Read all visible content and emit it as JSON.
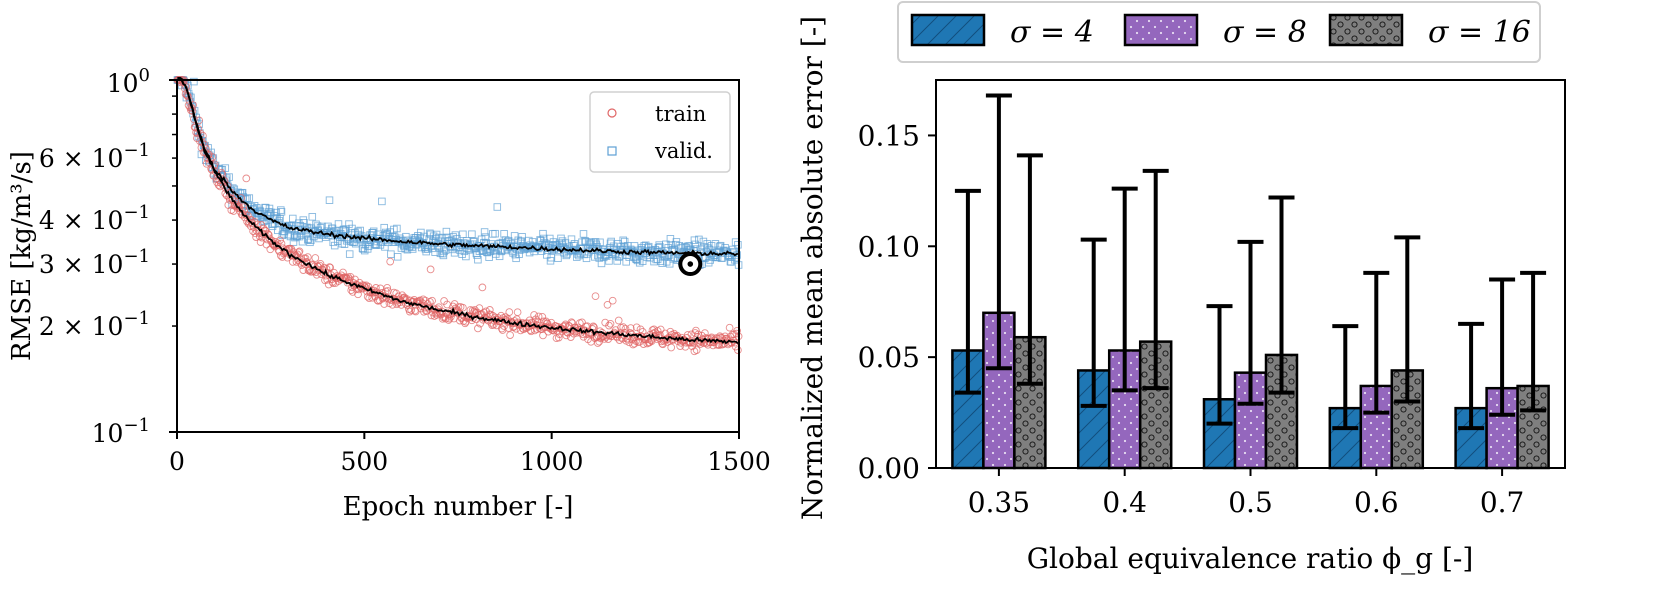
{
  "chart_data": [
    {
      "type": "scatter",
      "xlabel": "Epoch number [-]",
      "ylabel": "RMSE [kg/m³/s]",
      "xlim": [
        0,
        1500
      ],
      "ylim": [
        0.1,
        1.0
      ],
      "yscale": "log",
      "grid": false,
      "legend_position": "top-right",
      "x_ticks": [
        0,
        500,
        1000,
        1500
      ],
      "x_tick_labels": [
        "0",
        "500",
        "1000",
        "1500"
      ],
      "y_ticks": [
        0.1,
        0.2,
        0.3,
        0.4,
        0.6,
        1.0
      ],
      "y_tick_labels": [
        {
          "base": "2 × 10",
          "exp": "−1"
        },
        {
          "base": "3 × 10",
          "exp": "−1"
        },
        {
          "base": "4 × 10",
          "exp": "−1"
        },
        {
          "base": "6 × 10",
          "exp": "−1"
        }
      ],
      "y_tick_label_ends": [
        {
          "base": "10",
          "exp": "−1"
        },
        {
          "base": "10",
          "exp": "0"
        }
      ],
      "series": [
        {
          "name": "train",
          "marker": "circle",
          "color": "#e06666",
          "curve": [
            [
              1,
              1.05
            ],
            [
              25,
              0.95
            ],
            [
              50,
              0.75
            ],
            [
              75,
              0.62
            ],
            [
              100,
              0.55
            ],
            [
              150,
              0.45
            ],
            [
              200,
              0.39
            ],
            [
              250,
              0.35
            ],
            [
              300,
              0.32
            ],
            [
              400,
              0.28
            ],
            [
              500,
              0.255
            ],
            [
              600,
              0.235
            ],
            [
              700,
              0.222
            ],
            [
              800,
              0.212
            ],
            [
              900,
              0.204
            ],
            [
              1000,
              0.198
            ],
            [
              1100,
              0.193
            ],
            [
              1200,
              0.189
            ],
            [
              1300,
              0.185
            ],
            [
              1400,
              0.182
            ],
            [
              1500,
              0.18
            ]
          ]
        },
        {
          "name": "valid.",
          "marker": "square",
          "color": "#5ea0d4",
          "curve": [
            [
              1,
              1.05
            ],
            [
              25,
              0.95
            ],
            [
              50,
              0.76
            ],
            [
              75,
              0.63
            ],
            [
              100,
              0.56
            ],
            [
              150,
              0.48
            ],
            [
              200,
              0.43
            ],
            [
              250,
              0.4
            ],
            [
              300,
              0.38
            ],
            [
              400,
              0.365
            ],
            [
              500,
              0.355
            ],
            [
              600,
              0.348
            ],
            [
              700,
              0.342
            ],
            [
              800,
              0.338
            ],
            [
              900,
              0.335
            ],
            [
              1000,
              0.331
            ],
            [
              1100,
              0.328
            ],
            [
              1200,
              0.325
            ],
            [
              1300,
              0.323
            ],
            [
              1400,
              0.322
            ],
            [
              1500,
              0.32
            ]
          ]
        }
      ],
      "highlight_point": {
        "x": 1370,
        "y": 0.3
      }
    },
    {
      "type": "bar",
      "xlabel": "Global equivalence ratio ϕ_g [-]",
      "ylabel": "Normalized mean absolute error [-]",
      "categories": [
        "0.35",
        "0.4",
        "0.5",
        "0.6",
        "0.7"
      ],
      "ylim": [
        0,
        0.175
      ],
      "y_ticks": [
        0.0,
        0.05,
        0.1,
        0.15
      ],
      "y_tick_labels": [
        "0.00",
        "0.05",
        "0.10",
        "0.15"
      ],
      "legend_position": "top",
      "series": [
        {
          "name": "σ = 4",
          "color": "#1f77b4",
          "hatch": "diag",
          "values": [
            0.053,
            0.044,
            0.031,
            0.027,
            0.027
          ],
          "err_low": [
            0.034,
            0.028,
            0.02,
            0.018,
            0.018
          ],
          "err_high": [
            0.125,
            0.103,
            0.073,
            0.064,
            0.065
          ]
        },
        {
          "name": "σ = 8",
          "color": "#9467bd",
          "hatch": "dots",
          "values": [
            0.07,
            0.053,
            0.043,
            0.037,
            0.036
          ],
          "err_low": [
            0.045,
            0.035,
            0.029,
            0.025,
            0.024
          ],
          "err_high": [
            0.168,
            0.126,
            0.102,
            0.088,
            0.085
          ]
        },
        {
          "name": "σ = 16",
          "color": "#7f7f7f",
          "hatch": "circles",
          "values": [
            0.059,
            0.057,
            0.051,
            0.044,
            0.037
          ],
          "err_low": [
            0.038,
            0.036,
            0.034,
            0.03,
            0.026
          ],
          "err_high": [
            0.141,
            0.134,
            0.122,
            0.104,
            0.088
          ]
        }
      ]
    }
  ]
}
